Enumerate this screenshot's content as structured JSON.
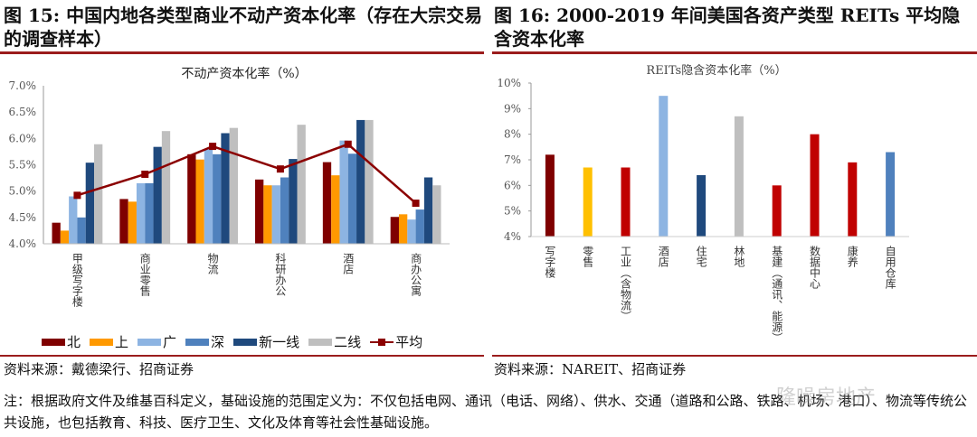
{
  "left": {
    "title": "图 15: 中国内地各类型商业不动产资本化率（存在大宗交易的调查样本）",
    "source": "资料来源：戴德梁行、招商证券"
  },
  "right": {
    "title": "图 16: 2000-2019 年间美国各资产类型 REITs 平均隐含资本化率",
    "source": "资料来源：NAREIT、招商证券"
  },
  "note": "注：根据政府文件及维基百科定义，基础设施的范围定义为：不仅包括电网、通讯（电话、网络）、供水、交通（道路和公路、铁路、机场、港口）、物流等传统公共设施，也包括教育、科技、医疗卫生、文化及体育等社会性基础设施。",
  "watermark": "隆噪房地产",
  "chart_data": [
    {
      "type": "bar",
      "title": "不动产资本化率（%）",
      "categories": [
        "甲级写字楼",
        "商业零售",
        "物流",
        "科研办公",
        "酒店",
        "商办公寓"
      ],
      "ylim": [
        4.0,
        7.0
      ],
      "yticks": [
        "4.0%",
        "4.5%",
        "5.0%",
        "5.5%",
        "6.0%",
        "6.5%",
        "7.0%"
      ],
      "legend_position": "bottom",
      "series": [
        {
          "name": "北",
          "color": "#7f0000",
          "values": [
            4.4,
            4.85,
            5.7,
            5.22,
            5.55,
            4.51
          ]
        },
        {
          "name": "上",
          "color": "#ff9900",
          "values": [
            4.25,
            4.8,
            5.6,
            5.11,
            5.3,
            4.56
          ]
        },
        {
          "name": "广",
          "color": "#8db4e2",
          "values": [
            4.9,
            5.15,
            5.8,
            5.11,
            5.96,
            4.46
          ]
        },
        {
          "name": "深",
          "color": "#4f81bd",
          "values": [
            4.5,
            5.15,
            5.7,
            5.26,
            5.71,
            4.65
          ]
        },
        {
          "name": "新一线",
          "color": "#1f497d",
          "values": [
            5.54,
            5.84,
            6.1,
            5.61,
            6.35,
            5.26
          ]
        },
        {
          "name": "二线",
          "color": "#bfbfbf",
          "values": [
            5.89,
            6.14,
            6.2,
            6.26,
            6.35,
            5.11
          ]
        }
      ],
      "line_series": {
        "name": "平均",
        "color": "#8b0000",
        "values": [
          4.92,
          5.32,
          5.85,
          5.42,
          5.89,
          4.77
        ]
      }
    },
    {
      "type": "bar",
      "title": "REITs隐含资本化率（%）",
      "categories": [
        "写字楼",
        "零售",
        "工业（含物流）",
        "酒店",
        "住宅",
        "林地",
        "基建（通讯、能源）",
        "数据中心",
        "康养",
        "自用仓库"
      ],
      "values": [
        7.2,
        6.7,
        6.7,
        9.5,
        6.4,
        8.7,
        6.0,
        8.0,
        6.9,
        7.3
      ],
      "colors": [
        "#7f0000",
        "#ffc000",
        "#c00000",
        "#8db4e2",
        "#1f497d",
        "#bfbfbf",
        "#c00000",
        "#c00000",
        "#c00000",
        "#4f81bd"
      ],
      "ylim": [
        4,
        10
      ],
      "yticks": [
        "4%",
        "5%",
        "6%",
        "7%",
        "8%",
        "9%",
        "10%"
      ]
    }
  ]
}
